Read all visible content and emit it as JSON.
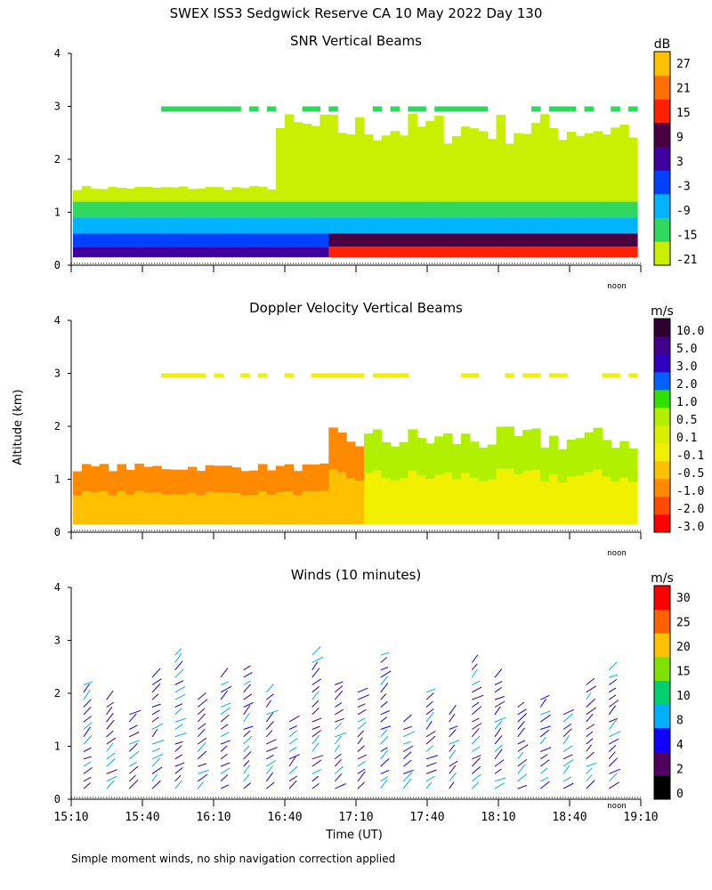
{
  "title": "SWEX ISS3 Sedgwick Reserve CA  10 May 2022 Day 130",
  "footnote": "Simple moment winds, no ship navigation correction applied",
  "y_axis_label": "Altitude (km)",
  "x_axis_label": "Time (UT)",
  "noon_label": "noon",
  "colors": {
    "axis": "#000000",
    "snr_scale": [
      "#c8f000",
      "#30d860",
      "#00b4ff",
      "#0040ff",
      "#4000a0",
      "#4a0040",
      "#ff2000",
      "#ff7000",
      "#ffc000"
    ],
    "vel_scale": [
      "#ff0000",
      "#ff4a00",
      "#ff8a00",
      "#ffc000",
      "#f0f000",
      "#d8f000",
      "#b0f000",
      "#30e000",
      "#0060ff",
      "#3000c0",
      "#40008a",
      "#300030"
    ],
    "wind_scale": [
      "#000000",
      "#500060",
      "#1000ff",
      "#00b0ff",
      "#00d070",
      "#80e000",
      "#ffc000",
      "#ff6000",
      "#ff0000"
    ]
  },
  "chart_data": [
    {
      "type": "heatmap",
      "title": "SNR Vertical Beams",
      "units": "dB",
      "xlabel": "",
      "ylabel": "Altitude (km)",
      "x_ticks": [
        "15:10",
        "15:40",
        "16:10",
        "16:40",
        "17:10",
        "17:40",
        "18:10",
        "18:40",
        "19:10"
      ],
      "y_ticks": [
        "0",
        "1",
        "2",
        "3",
        "4"
      ],
      "ylim": [
        0,
        4
      ],
      "colorbar_labels": [
        "27",
        "21",
        "15",
        "9",
        "3",
        "-3",
        "-9",
        "-15",
        "-21"
      ]
    },
    {
      "type": "heatmap",
      "title": "Doppler Velocity Vertical Beams",
      "units": "m/s",
      "xlabel": "",
      "ylabel": "Altitude (km)",
      "x_ticks": [
        "15:10",
        "15:40",
        "16:10",
        "16:40",
        "17:10",
        "17:40",
        "18:10",
        "18:40",
        "19:10"
      ],
      "y_ticks": [
        "0",
        "1",
        "2",
        "3",
        "4"
      ],
      "ylim": [
        0,
        4
      ],
      "colorbar_labels": [
        "10.0",
        "5.0",
        "3.0",
        "2.0",
        "1.0",
        "0.5",
        "0.1",
        "-0.1",
        "-0.5",
        "-1.0",
        "-2.0",
        "-3.0"
      ]
    },
    {
      "type": "scatter",
      "title": "Winds (10 minutes)",
      "units": "m/s",
      "xlabel": "Time (UT)",
      "ylabel": "Altitude (km)",
      "x_ticks": [
        "15:10",
        "15:40",
        "16:10",
        "16:40",
        "17:10",
        "17:40",
        "18:10",
        "18:40",
        "19:10"
      ],
      "y_ticks": [
        "0",
        "1",
        "2",
        "3",
        "4"
      ],
      "ylim": [
        0,
        4
      ],
      "colorbar_labels": [
        "30",
        "25",
        "20",
        "15",
        "10",
        "8",
        "4",
        "2",
        "0"
      ]
    }
  ]
}
